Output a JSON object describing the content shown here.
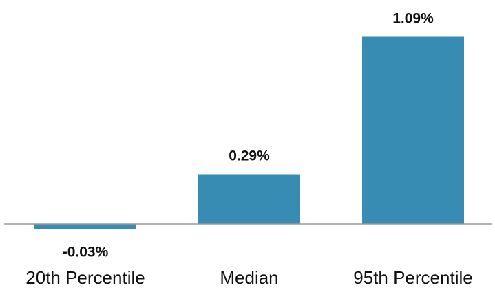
{
  "chart_data": {
    "type": "bar",
    "categories": [
      "20th Percentile",
      "Median",
      "95th Percentile"
    ],
    "values": [
      -0.03,
      0.29,
      1.09
    ],
    "value_labels": [
      "-0.03%",
      "0.29%",
      "1.09%"
    ],
    "bar_color": "#368cb2",
    "axis_color": "#9a9a9a",
    "title": "",
    "xlabel": "",
    "ylabel": "",
    "gridlines": false,
    "legend": "none"
  }
}
